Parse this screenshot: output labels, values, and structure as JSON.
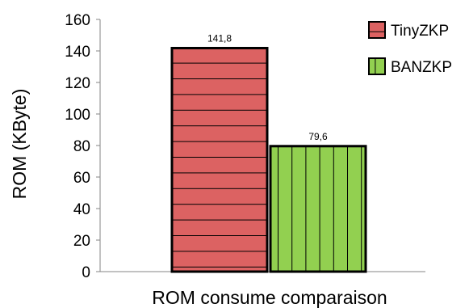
{
  "chart_data": {
    "type": "bar",
    "categories": [
      "ROM consume comparaison"
    ],
    "series": [
      {
        "name": "TinyZKP",
        "values": [
          141.8
        ],
        "value_label": "141,8",
        "color": "#dc6262",
        "pattern": "horizontal-stripes"
      },
      {
        "name": "BANZKP",
        "values": [
          79.6
        ],
        "value_label": "79,6",
        "color": "#92d050",
        "pattern": "vertical-stripes"
      }
    ],
    "ylabel": "ROM (KByte)",
    "xlabel": "ROM consume comparaison",
    "ylim": [
      0,
      160
    ],
    "yticks": [
      0,
      20,
      40,
      60,
      80,
      100,
      120,
      140,
      160
    ],
    "legend_position": "top-right",
    "grid": false
  }
}
